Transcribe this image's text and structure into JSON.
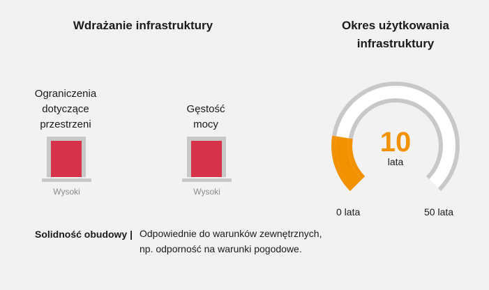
{
  "deployment": {
    "title": "Wdrażanie infrastruktury",
    "indicators": [
      {
        "label_lines": [
          "Ograniczenia",
          "dotyczące",
          "przestrzeni"
        ],
        "level": "Wysoki",
        "color": "#d6324a"
      },
      {
        "label_lines": [
          "Gęstość",
          "mocy"
        ],
        "level": "Wysoki",
        "color": "#d6324a"
      }
    ]
  },
  "lifespan": {
    "title_lines": [
      "Okres użytkowania",
      "infrastruktury"
    ],
    "value": "10",
    "value_number": 10,
    "unit": "lata",
    "min_label": "0 lata",
    "max_label": "50 lata",
    "min": 0,
    "max": 50,
    "fill_color": "#f39200",
    "track_color": "#c8c8c8"
  },
  "robustness": {
    "label": "Solidność obudowy |",
    "text_lines": [
      "Odpowiednie do warunków zewnętrznych,",
      "np. odporność na warunki pogodowe."
    ]
  }
}
